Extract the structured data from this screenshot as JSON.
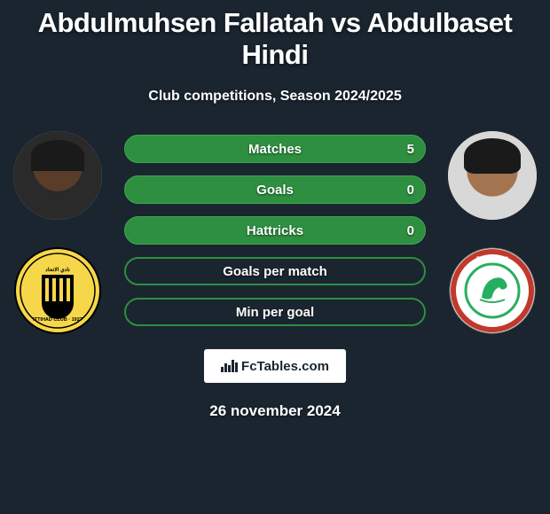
{
  "title": "Abdulmuhsen Fallatah vs Abdulbaset Hindi",
  "subtitle": "Club competitions, Season 2024/2025",
  "stats": [
    {
      "label": "Matches",
      "value": "5",
      "style": "green"
    },
    {
      "label": "Goals",
      "value": "0",
      "style": "green"
    },
    {
      "label": "Hattricks",
      "value": "0",
      "style": "green"
    },
    {
      "label": "Goals per match",
      "value": "",
      "style": "outline"
    },
    {
      "label": "Min per goal",
      "value": "",
      "style": "outline"
    }
  ],
  "branding": {
    "text": "FcTables.com"
  },
  "date": "26 november 2024",
  "colors": {
    "bg": "#1a2530",
    "pill_green": "#2d8f3f",
    "pill_border": "#3fa852",
    "text": "#ffffff"
  },
  "team_left": {
    "name": "Al-Ittihad",
    "badge_bg": "#f7d74a",
    "badge_stripes": "#000000",
    "badge_text": "ITTIHAD CLUB"
  },
  "team_right": {
    "name": "Al-Ettifaq",
    "badge_bg": "#ffffff",
    "badge_ring": "#c0392b",
    "badge_inner": "#27ae60"
  },
  "chart_icon_heights": [
    6,
    10,
    8,
    14,
    11
  ]
}
